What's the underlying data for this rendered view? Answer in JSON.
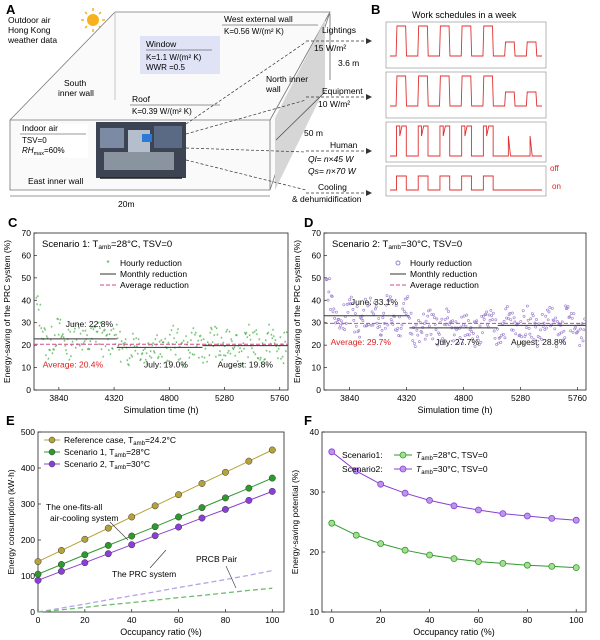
{
  "panel_a": {
    "letter": "A",
    "outdoor": [
      "Outdoor air",
      "Hong Kong",
      "weather data"
    ],
    "west_wall": {
      "name": "West external wall",
      "k": "K=0.56 W/(m² K)"
    },
    "window": {
      "name": "Window",
      "k": "K=1.1 W/(m² K)",
      "wwr": "WWR =0.5"
    },
    "south_wall": [
      "South",
      "inner wall"
    ],
    "roof": {
      "name": "Roof",
      "k": "K=0.39 W/(m² K)"
    },
    "north_wall": [
      "North inner",
      "wall"
    ],
    "indoor": {
      "name": "Indoor air",
      "tsv": "TSV=0",
      "rh": "RH"
    },
    "east_wall": "East inner wall",
    "dim_height": "3.6 m",
    "dim_depth": "50 m",
    "dim_width": "20m",
    "lightings": [
      "Lightings",
      "15 W/m²"
    ],
    "equipment": [
      "Equipment",
      "10 W/m²"
    ],
    "human": {
      "name": "Human",
      "ql": "Ql= n×45 W",
      "qs": "Qs= n×70 W"
    },
    "cooling": [
      "Cooling",
      "& dehumidification"
    ]
  },
  "panel_b": {
    "letter": "B",
    "title": "Work schedules in a week",
    "off": "off",
    "on": "on"
  },
  "chart_data": [
    {
      "id": "C",
      "type": "scatter",
      "title": "Scenario 1: T",
      "xlabel": "Simulation time (h)",
      "ylabel": "Energy-saving of the PRC system (%)",
      "xlim": [
        3624,
        5832
      ],
      "ylim": [
        0,
        70
      ],
      "xticks": [
        3840,
        4320,
        4800,
        5280,
        5760
      ],
      "yticks": [
        0,
        10,
        20,
        30,
        40,
        50,
        60,
        70
      ],
      "series_color": "#3aa83a",
      "legend": [
        "Hourly reduction",
        "Monthly reduction",
        "Average reduction"
      ],
      "average": 20.4,
      "monthly": [
        {
          "x0": 3624,
          "x1": 4344,
          "y": 22.8
        },
        {
          "x0": 4344,
          "x1": 5088,
          "y": 19.0
        },
        {
          "x0": 5088,
          "x1": 5832,
          "y": 19.8
        }
      ],
      "annotations": [
        {
          "text": "June: 22.8%",
          "x": 3900,
          "y": 28
        },
        {
          "text": "Average: 20.4%",
          "x": 3700,
          "y": 10,
          "color": "#e02020"
        },
        {
          "text": "July: 19.0%",
          "x": 4580,
          "y": 10
        },
        {
          "text": "Augest: 19.8%",
          "x": 5220,
          "y": 10
        }
      ]
    },
    {
      "id": "D",
      "type": "scatter",
      "title": "Scenario 2: T",
      "xlabel": "Simulation time (h)",
      "ylabel": "Energy-saving of the PRC system (%)",
      "xlim": [
        3624,
        5832
      ],
      "ylim": [
        0,
        70
      ],
      "xticks": [
        3840,
        4320,
        4800,
        5280,
        5760
      ],
      "yticks": [
        0,
        10,
        20,
        30,
        40,
        50,
        60,
        70
      ],
      "series_color": "#9b7fd0",
      "legend": [
        "Hourly reduction",
        "Monthly reduction",
        "Average reduction"
      ],
      "average": 29.7,
      "monthly": [
        {
          "x0": 3624,
          "x1": 4344,
          "y": 33.1
        },
        {
          "x0": 4344,
          "x1": 5088,
          "y": 27.7
        },
        {
          "x0": 5088,
          "x1": 5832,
          "y": 28.8
        }
      ],
      "annotations": [
        {
          "text": "June: 33.1%",
          "x": 3850,
          "y": 38
        },
        {
          "text": "Average: 29.7%",
          "x": 3680,
          "y": 20,
          "color": "#e02020"
        },
        {
          "text": "July: 27.7%",
          "x": 4560,
          "y": 20
        },
        {
          "text": "Augest: 28.8%",
          "x": 5200,
          "y": 20
        }
      ]
    },
    {
      "id": "E",
      "type": "line",
      "xlabel": "Occupancy ratio (%)",
      "ylabel": "Energy consumption (kW·h)",
      "xlim": [
        0,
        105
      ],
      "ylim": [
        0,
        500
      ],
      "xticks": [
        0,
        20,
        40,
        60,
        80,
        100
      ],
      "yticks": [
        0,
        100,
        200,
        300,
        400,
        500
      ],
      "x": [
        0,
        10,
        20,
        30,
        40,
        50,
        60,
        70,
        80,
        90,
        100
      ],
      "series": [
        {
          "name": "Reference case, T",
          "sub": "amb",
          "suffix": "=24.2°C",
          "color": "#b5a33a",
          "values": [
            140,
            171,
            202,
            233,
            264,
            295,
            326,
            357,
            388,
            419,
            450
          ]
        },
        {
          "name": "Scenario 1, T",
          "sub": "amb",
          "suffix": "=28°C",
          "color": "#2e9a2e",
          "values": [
            105,
            132,
            159,
            185,
            211,
            237,
            264,
            290,
            317,
            344,
            372
          ]
        },
        {
          "name": "Scenario 2, T",
          "sub": "amb",
          "suffix": "=30°C",
          "color": "#8a3fd6",
          "values": [
            88,
            113,
            137,
            162,
            187,
            212,
            236,
            261,
            285,
            310,
            335
          ]
        }
      ],
      "dashed": [
        {
          "color": "#b6a3e6",
          "values": [
            0,
            11,
            22,
            34,
            45,
            56,
            68,
            79,
            90,
            102,
            115
          ]
        },
        {
          "color": "#6dbd6d",
          "values": [
            0,
            6,
            13,
            20,
            26,
            33,
            40,
            46,
            53,
            60,
            66
          ]
        }
      ],
      "annotations": [
        "The one-fits-all",
        "air-cooling system",
        "The PRC system",
        "PRCB Pair"
      ]
    },
    {
      "id": "F",
      "type": "line",
      "xlabel": "Occupancy ratio (%)",
      "ylabel": "Energy-saving potential (%)",
      "xlim": [
        -4,
        104
      ],
      "ylim": [
        10,
        40
      ],
      "xticks": [
        0,
        20,
        40,
        60,
        80,
        100
      ],
      "yticks": [
        10,
        20,
        30,
        40
      ],
      "x": [
        0,
        10,
        20,
        30,
        40,
        50,
        60,
        70,
        80,
        90,
        100
      ],
      "series": [
        {
          "name": "Scenario1:",
          "color": "#2e9a2e",
          "fill": "#a7dd8f",
          "values": [
            24.8,
            22.8,
            21.4,
            20.3,
            19.5,
            18.9,
            18.4,
            18.1,
            17.8,
            17.6,
            17.4
          ]
        },
        {
          "name": "Scenario2:",
          "color": "#8a3fd6",
          "fill": "#b897e8",
          "values": [
            36.7,
            33.5,
            31.3,
            29.8,
            28.6,
            27.7,
            27.0,
            26.4,
            26.0,
            25.6,
            25.3
          ]
        }
      ]
    }
  ]
}
